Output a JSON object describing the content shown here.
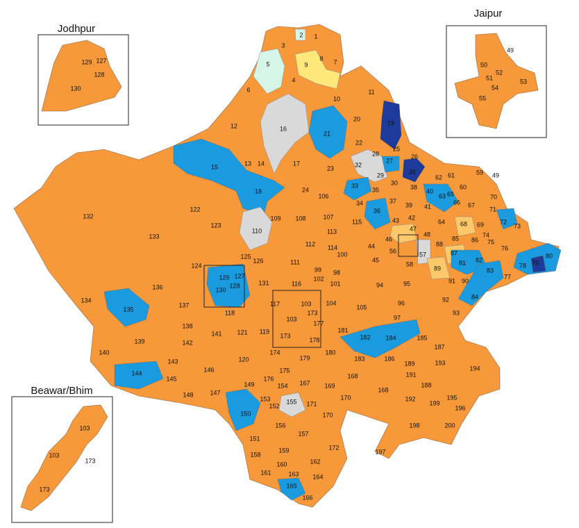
{
  "map": {
    "labels": [
      "1",
      "2",
      "3",
      "8",
      "9",
      "7",
      "5",
      "4",
      "6",
      "10",
      "11",
      "12",
      "16",
      "21",
      "20",
      "19",
      "22",
      "25",
      "26",
      "28",
      "27",
      "32",
      "29",
      "31",
      "23",
      "17",
      "13",
      "14",
      "15",
      "18",
      "24",
      "33",
      "30",
      "35",
      "38",
      "62",
      "61",
      "59",
      "49",
      "60",
      "70",
      "65",
      "40",
      "63",
      "66",
      "67",
      "71",
      "34",
      "37",
      "39",
      "41",
      "106",
      "122",
      "132",
      "123",
      "133",
      "110",
      "109",
      "108",
      "107",
      "115",
      "36",
      "43",
      "42",
      "64",
      "68",
      "69",
      "72",
      "73",
      "74",
      "75",
      "76",
      "47",
      "48",
      "46",
      "56",
      "57",
      "44",
      "113",
      "112",
      "114",
      "100",
      "45",
      "58",
      "85",
      "86",
      "88",
      "87",
      "82",
      "81",
      "79",
      "80",
      "78",
      "83",
      "77",
      "89",
      "91",
      "90",
      "125",
      "126",
      "111",
      "124",
      "99",
      "98",
      "102",
      "101",
      "129",
      "127",
      "128",
      "130",
      "131",
      "116",
      "94",
      "95",
      "136",
      "134",
      "135",
      "137",
      "118",
      "117",
      "103",
      "173",
      "104",
      "105",
      "96",
      "92",
      "84",
      "103",
      "177",
      "97",
      "93",
      "138",
      "141",
      "121",
      "119",
      "173",
      "178",
      "181",
      "182",
      "184",
      "185",
      "139",
      "142",
      "187",
      "140",
      "143",
      "120",
      "174",
      "179",
      "180",
      "183",
      "186",
      "189",
      "193",
      "194",
      "146",
      "175",
      "191",
      "144",
      "145",
      "176",
      "154",
      "167",
      "169",
      "168",
      "168",
      "149",
      "188",
      "148",
      "147",
      "153",
      "152",
      "155",
      "171",
      "170",
      "192",
      "199",
      "195",
      "196",
      "150",
      "170",
      "156",
      "198",
      "200",
      "151",
      "157",
      "172",
      "159",
      "158",
      "197",
      "160",
      "162",
      "161",
      "163",
      "164",
      "165",
      "166"
    ]
  },
  "insets": [
    {
      "title": "Jodhpur",
      "labels": [
        "129",
        "127",
        "128",
        "130"
      ]
    },
    {
      "title": "Jaipur",
      "labels": [
        "49",
        "50",
        "52",
        "51",
        "53",
        "54",
        "55"
      ]
    },
    {
      "title": "Beawar/Bhim",
      "labels": [
        "103",
        "103",
        "173",
        "173"
      ]
    }
  ]
}
